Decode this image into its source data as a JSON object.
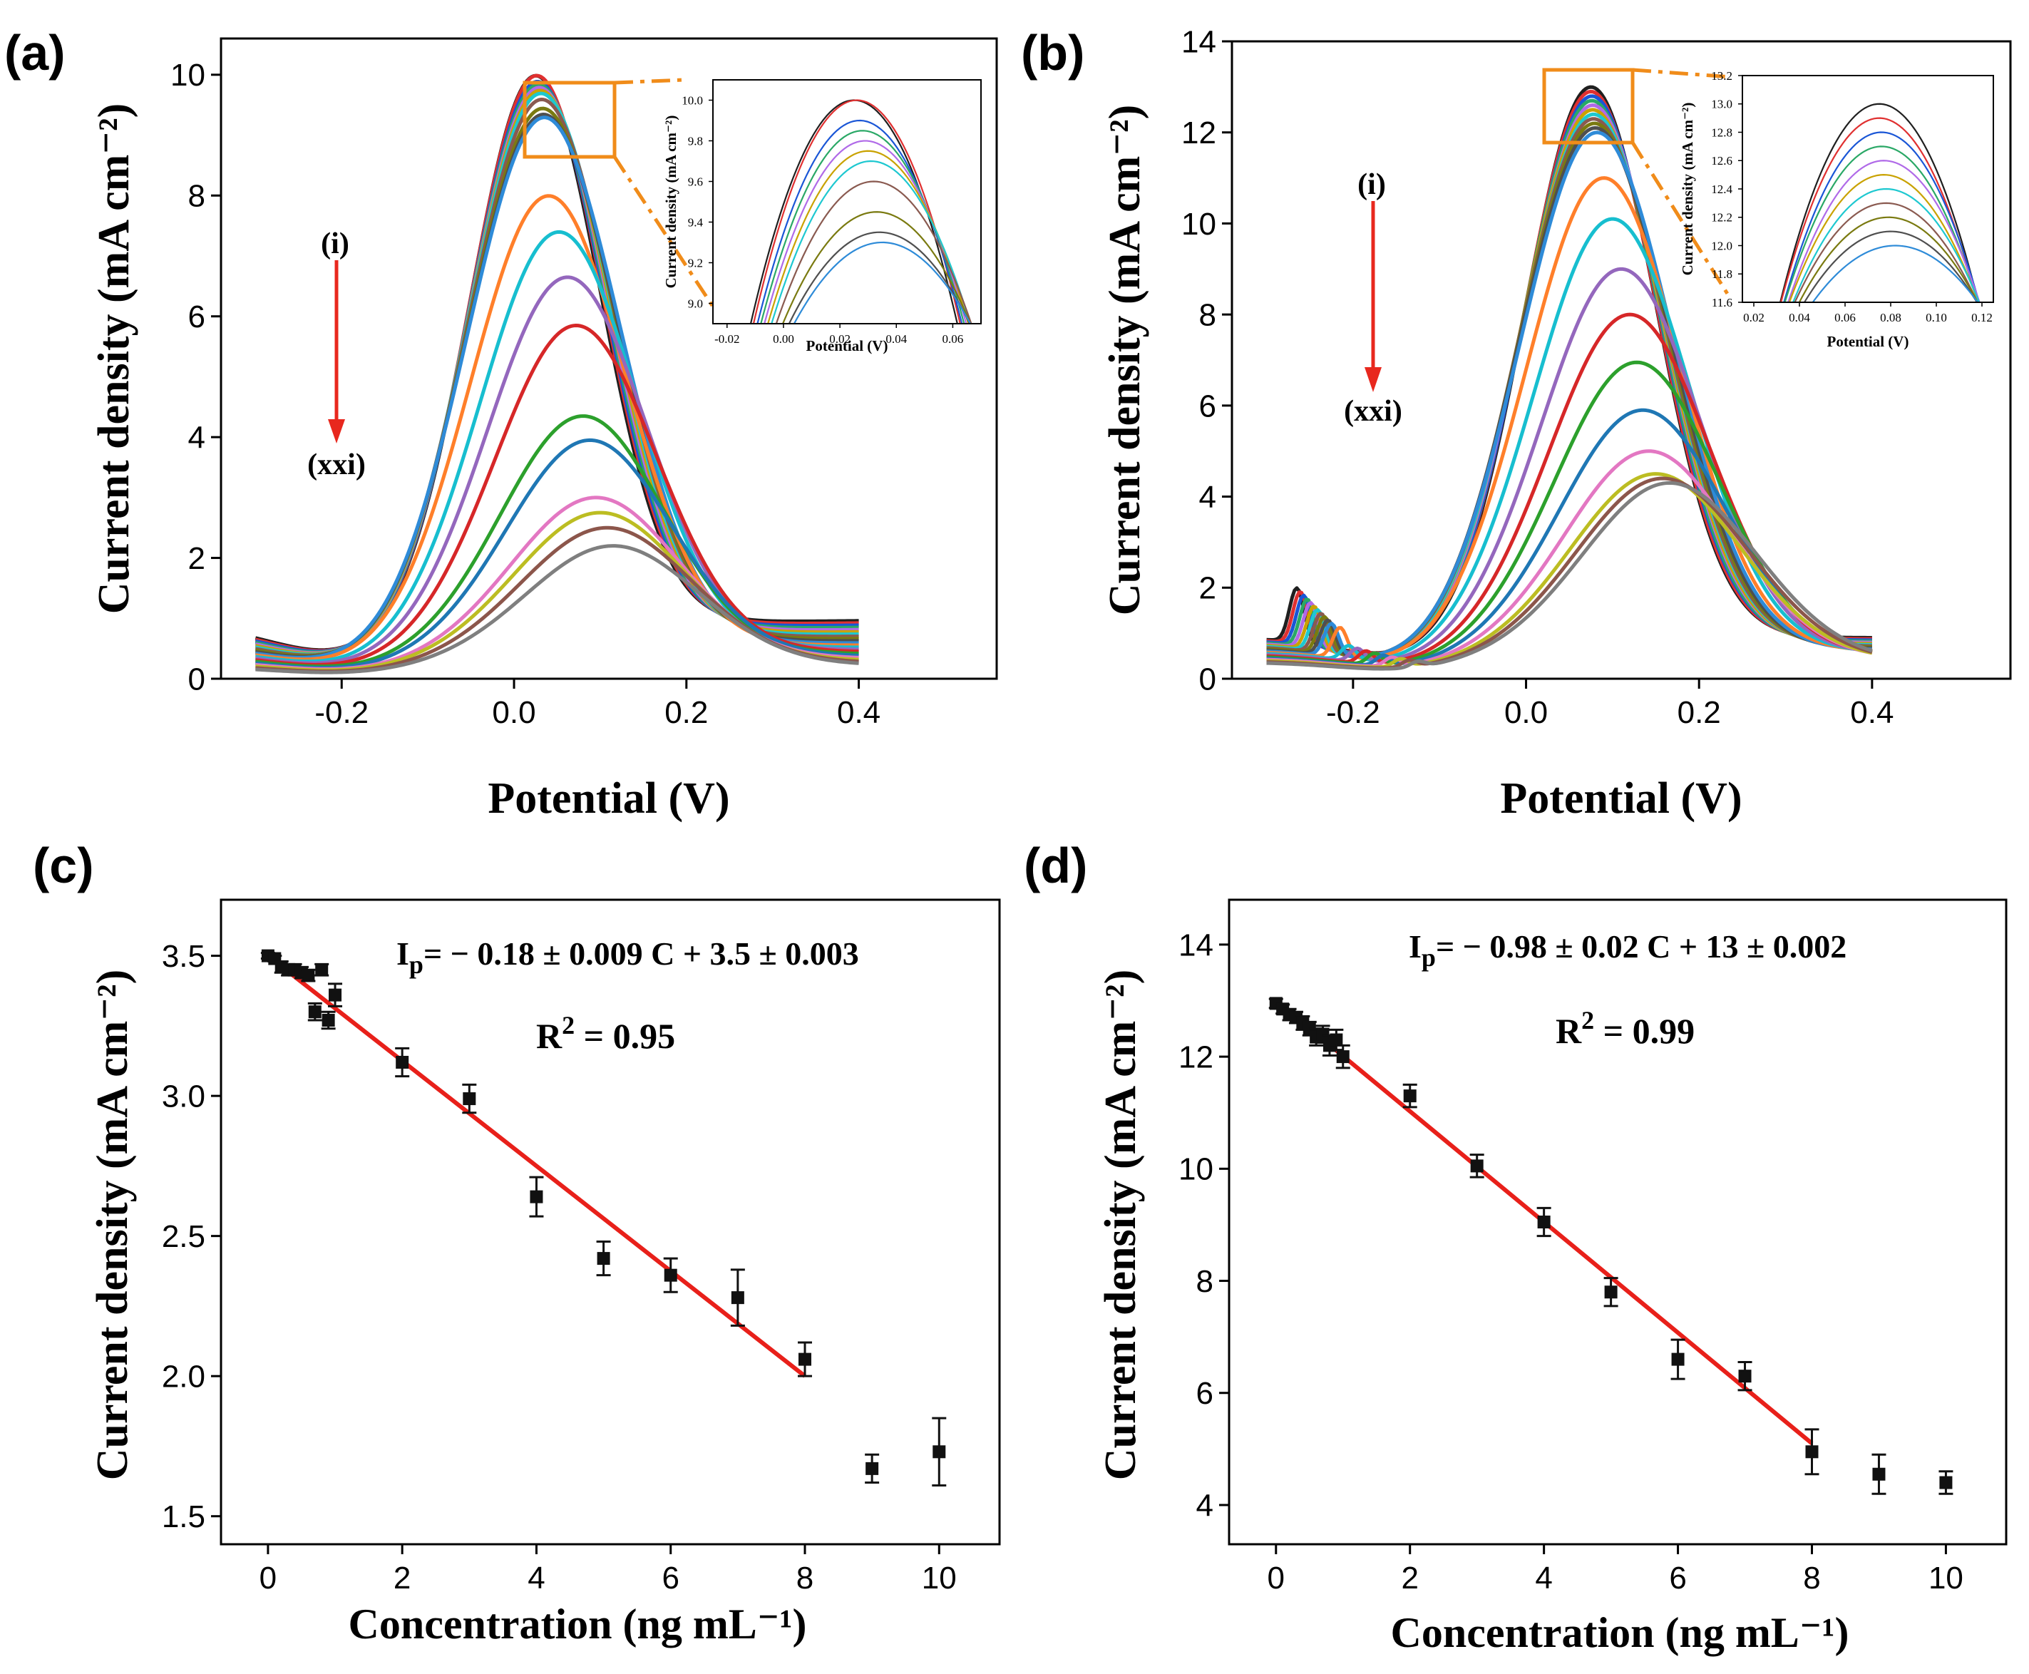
{
  "colors": {
    "curves": [
      "#1f1f1f",
      "#e03030",
      "#1a56d6",
      "#2aa866",
      "#b06ae8",
      "#c9a200",
      "#1ec8d0",
      "#8a5a50",
      "#7a7a10",
      "#4f4f4f",
      "#2e8bd8",
      "#ff7f2a",
      "#17becf",
      "#9467bd",
      "#d62728",
      "#2ca02c",
      "#1f77b4",
      "#e377c2",
      "#bcbd22",
      "#8c564b",
      "#7f7f7f"
    ],
    "arrow": "#e8281e",
    "end_label": "#8a7a10",
    "inset_box": "#f08c1a",
    "fit_line": "#e8201a",
    "points": "#111111"
  },
  "panels": {
    "a": {
      "label": "(a)"
    },
    "b": {
      "label": "(b)"
    },
    "c": {
      "label": "(c)"
    },
    "d": {
      "label": "(d)"
    }
  },
  "annotations": {
    "start": "(i)",
    "end": "(xxi)",
    "c_eq_lhs": "I",
    "c_eq_sub": "p",
    "c_eq_rhs": "= − 0.18 ± 0.009 C + 3.5 ± 0.003",
    "c_r2_lhs": "R",
    "c_r2_sup": "2",
    "c_r2_rhs": " = 0.95",
    "d_eq_lhs": "I",
    "d_eq_sub": "p",
    "d_eq_rhs": "=  − 0.98 ± 0.02 C  + 13 ± 0.002",
    "d_r2_lhs": "R",
    "d_r2_sup": "2",
    "d_r2_rhs": " = 0.99"
  },
  "chart_data": [
    {
      "id": "a",
      "type": "line",
      "title": "",
      "xlabel": "Potential (V)",
      "ylabel": "Current density (mA cm⁻²)",
      "xlim": [
        -0.34,
        0.56
      ],
      "ylim": [
        0,
        10.6
      ],
      "xticks": [
        -0.2,
        0.0,
        0.2,
        0.4
      ],
      "xtick_labels": [
        "-0.2",
        "0.0",
        "0.2",
        "0.4"
      ],
      "yticks": [
        0,
        2,
        4,
        6,
        8,
        10
      ],
      "ytick_labels": [
        "0",
        "2",
        "4",
        "6",
        "8",
        "10"
      ],
      "x_range": [
        -0.3,
        0.4
      ],
      "series_note": "21 curves (i) to (xxi)",
      "peak_potentials": [
        0.025,
        0.026,
        0.027,
        0.028,
        0.029,
        0.03,
        0.031,
        0.032,
        0.033,
        0.034,
        0.035,
        0.04,
        0.052,
        0.062,
        0.072,
        0.08,
        0.088,
        0.095,
        0.1,
        0.108,
        0.115
      ],
      "peak_currents": [
        10.0,
        10.0,
        9.9,
        9.85,
        9.8,
        9.75,
        9.7,
        9.6,
        9.45,
        9.35,
        9.3,
        8.0,
        7.4,
        6.65,
        5.85,
        4.35,
        3.95,
        3.0,
        2.75,
        2.5,
        2.2
      ],
      "inset": {
        "xlabel": "Potential (V)",
        "ylabel": "Current density (mA cm⁻²)",
        "xlim": [
          -0.025,
          0.07
        ],
        "ylim": [
          8.9,
          10.1
        ],
        "xticks": [
          -0.02,
          0.0,
          0.02,
          0.04,
          0.06
        ],
        "xtick_labels": [
          "-0.02",
          "0.00",
          "0.02",
          "0.04",
          "0.06"
        ],
        "yticks": [
          9.0,
          9.2,
          9.4,
          9.6,
          9.8,
          10.0
        ],
        "ytick_labels": [
          "9.0",
          "9.2",
          "9.4",
          "9.6",
          "9.8",
          "10.0"
        ]
      }
    },
    {
      "id": "b",
      "type": "line",
      "title": "",
      "xlabel": "Potential (V)",
      "ylabel": "Current density (mA cm⁻²)",
      "xlim": [
        -0.34,
        0.56
      ],
      "ylim": [
        0,
        14
      ],
      "xticks": [
        -0.2,
        0.0,
        0.2,
        0.4
      ],
      "xtick_labels": [
        "-0.2",
        "0.0",
        "0.2",
        "0.4"
      ],
      "yticks": [
        0,
        2,
        4,
        6,
        8,
        10,
        12,
        14
      ],
      "ytick_labels": [
        "0",
        "2",
        "4",
        "6",
        "8",
        "10",
        "12",
        "14"
      ],
      "x_range": [
        -0.3,
        0.4
      ],
      "series_note": "21 curves (i) to (xxi)",
      "peak_potentials": [
        0.075,
        0.075,
        0.076,
        0.076,
        0.077,
        0.077,
        0.078,
        0.078,
        0.079,
        0.08,
        0.082,
        0.09,
        0.1,
        0.11,
        0.12,
        0.128,
        0.135,
        0.142,
        0.15,
        0.158,
        0.166
      ],
      "peak_currents": [
        13.0,
        12.9,
        12.8,
        12.7,
        12.6,
        12.5,
        12.4,
        12.3,
        12.2,
        12.1,
        12.0,
        11.0,
        10.1,
        9.0,
        8.0,
        6.95,
        5.9,
        5.0,
        4.5,
        4.4,
        4.3
      ],
      "inset": {
        "xlabel": "Potential (V)",
        "ylabel": "Current density (mA cm⁻²)",
        "xlim": [
          0.015,
          0.125
        ],
        "ylim": [
          11.6,
          13.2
        ],
        "xticks": [
          0.02,
          0.04,
          0.06,
          0.08,
          0.1,
          0.12
        ],
        "xtick_labels": [
          "0.02",
          "0.04",
          "0.06",
          "0.08",
          "0.10",
          "0.12"
        ],
        "yticks": [
          11.6,
          11.8,
          12.0,
          12.2,
          12.4,
          12.6,
          12.8,
          13.0,
          13.2
        ],
        "ytick_labels": [
          "11.6",
          "11.8",
          "12.0",
          "12.2",
          "12.4",
          "12.6",
          "12.8",
          "13.0",
          "13.2"
        ]
      }
    },
    {
      "id": "c",
      "type": "scatter",
      "title": "",
      "xlabel": "Concentration (ng mL⁻¹)",
      "ylabel": "Current density (mA cm⁻²)",
      "xlim": [
        -0.7,
        10.9
      ],
      "ylim": [
        1.4,
        3.7
      ],
      "xticks": [
        0,
        2,
        4,
        6,
        8,
        10
      ],
      "xtick_labels": [
        "0",
        "2",
        "4",
        "6",
        "8",
        "10"
      ],
      "yticks": [
        1.5,
        2.0,
        2.5,
        3.0,
        3.5
      ],
      "ytick_labels": [
        "1.5",
        "2.0",
        "2.5",
        "3.0",
        "3.5"
      ],
      "x": [
        0,
        0.1,
        0.2,
        0.3,
        0.4,
        0.5,
        0.6,
        0.7,
        0.8,
        0.9,
        1,
        2,
        3,
        4,
        5,
        6,
        7,
        8,
        9,
        10
      ],
      "y": [
        3.5,
        3.49,
        3.46,
        3.45,
        3.45,
        3.44,
        3.43,
        3.3,
        3.45,
        3.27,
        3.36,
        3.12,
        2.99,
        2.64,
        2.42,
        2.36,
        2.28,
        2.06,
        1.67,
        1.73
      ],
      "yerr": [
        0.01,
        0.01,
        0.02,
        0.02,
        0.02,
        0.02,
        0.02,
        0.03,
        0.02,
        0.03,
        0.04,
        0.05,
        0.05,
        0.07,
        0.06,
        0.06,
        0.1,
        0.06,
        0.05,
        0.12
      ],
      "fit": {
        "x": [
          0,
          8
        ],
        "y": [
          3.5,
          2.0
        ]
      }
    },
    {
      "id": "d",
      "type": "scatter",
      "title": "",
      "xlabel": "Concentration (ng mL⁻¹)",
      "ylabel": "Current density (mA cm⁻²)",
      "xlim": [
        -0.7,
        10.9
      ],
      "ylim": [
        3.3,
        14.8
      ],
      "xticks": [
        0,
        2,
        4,
        6,
        8,
        10
      ],
      "xtick_labels": [
        "0",
        "2",
        "4",
        "6",
        "8",
        "10"
      ],
      "yticks": [
        4,
        6,
        8,
        10,
        12,
        14
      ],
      "ytick_labels": [
        "4",
        "6",
        "8",
        "10",
        "12",
        "14"
      ],
      "x": [
        0,
        0.1,
        0.2,
        0.3,
        0.4,
        0.5,
        0.6,
        0.7,
        0.8,
        0.9,
        1,
        2,
        3,
        4,
        5,
        6,
        7,
        8,
        9,
        10
      ],
      "y": [
        12.95,
        12.85,
        12.75,
        12.7,
        12.6,
        12.5,
        12.35,
        12.4,
        12.2,
        12.3,
        12.0,
        11.3,
        10.05,
        9.05,
        7.8,
        6.6,
        6.3,
        4.95,
        4.55,
        4.4
      ],
      "yerr": [
        0.08,
        0.08,
        0.1,
        0.1,
        0.12,
        0.12,
        0.15,
        0.15,
        0.18,
        0.18,
        0.2,
        0.2,
        0.2,
        0.25,
        0.25,
        0.35,
        0.25,
        0.4,
        0.35,
        0.2
      ],
      "fit": {
        "x": [
          0,
          8
        ],
        "y": [
          13.0,
          5.1
        ]
      }
    }
  ]
}
